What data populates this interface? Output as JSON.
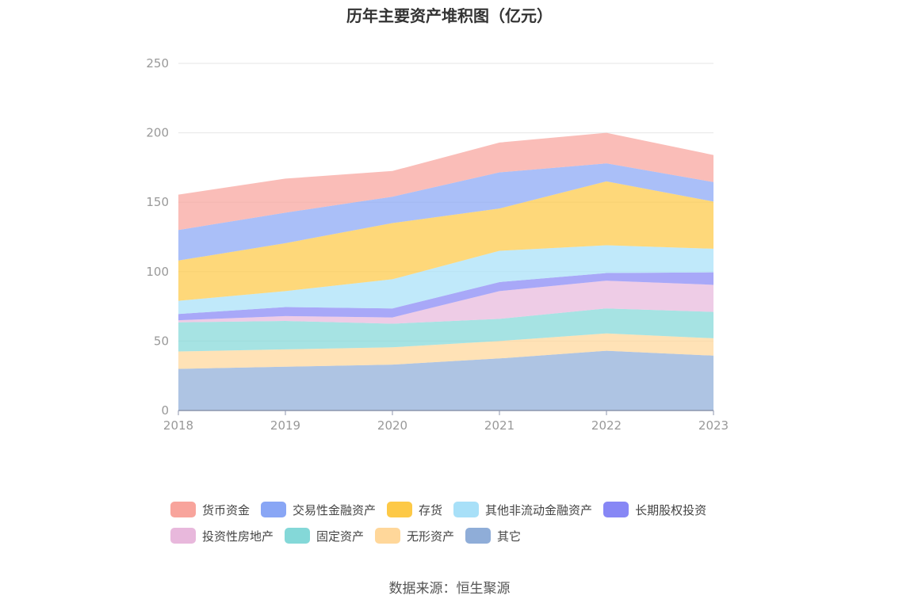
{
  "source": "数据来源：恒生聚源",
  "chart_data": {
    "type": "area",
    "stacked": true,
    "title": "历年主要资产堆积图（亿元）",
    "x": [
      "2018",
      "2019",
      "2020",
      "2021",
      "2022",
      "2023"
    ],
    "ylim": [
      0,
      250
    ],
    "yticks": [
      "0",
      "50",
      "100",
      "150",
      "200",
      "250"
    ],
    "grid": true,
    "legend_position": "bottom",
    "series": [
      {
        "name": "其它",
        "color": "#8fadd8",
        "values": [
          30,
          31.5,
          33,
          37.5,
          43,
          39.5
        ]
      },
      {
        "name": "无形资产",
        "color": "#ffd79a",
        "values": [
          12.5,
          12.5,
          12.5,
          12.5,
          12.5,
          12.5
        ]
      },
      {
        "name": "固定资产",
        "color": "#84d8d8",
        "values": [
          21,
          20.5,
          17,
          16,
          18,
          19
        ]
      },
      {
        "name": "投资性房地产",
        "color": "#e8b8dc",
        "values": [
          1.5,
          3.5,
          4.5,
          20,
          20,
          19.5
        ]
      },
      {
        "name": "长期股权投资",
        "color": "#8787f5",
        "values": [
          4.5,
          6.5,
          6.5,
          6.5,
          5.5,
          9
        ]
      },
      {
        "name": "其他非流动金融资产",
        "color": "#a8e0f8",
        "values": [
          9.5,
          11.5,
          21,
          22.5,
          20,
          17
        ]
      },
      {
        "name": "存货",
        "color": "#fdc947",
        "values": [
          29,
          34.5,
          40.5,
          30.5,
          46,
          34
        ]
      },
      {
        "name": "交易性金融资产",
        "color": "#89a6f5",
        "values": [
          22,
          22,
          19,
          26,
          13,
          14
        ]
      },
      {
        "name": "货币资金",
        "color": "#f8a49c",
        "values": [
          25.5,
          24.5,
          18.5,
          21.5,
          22,
          19.5
        ]
      }
    ],
    "legend_rows": [
      [
        "货币资金",
        "交易性金融资产",
        "存货",
        "其他非流动金融资产",
        "长期股权投资"
      ],
      [
        "投资性房地产",
        "固定资产",
        "无形资产",
        "其它"
      ]
    ]
  }
}
